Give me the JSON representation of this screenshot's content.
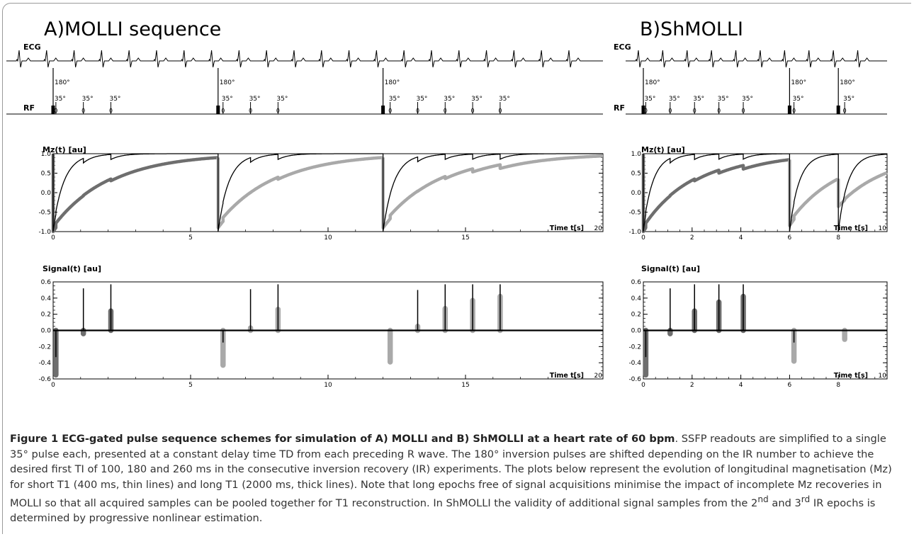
{
  "panels": [
    {
      "id": "A",
      "title": "A)MOLLI sequence",
      "ecg_label": "ECG",
      "rf_label": "RF",
      "mz_label": "Mz(t) [au]",
      "signal_label": "Signal(t) [au]",
      "time_label": "Time t[s]",
      "x_ticks": [
        "0",
        "5",
        "10",
        "15",
        "20"
      ],
      "mz_y_ticks": [
        "1.0",
        "0.5",
        "0.0",
        "-0.5",
        "-1.0"
      ],
      "signal_y_ticks": [
        "0.6",
        "0.4",
        "0.2",
        "0.0",
        "-0.2",
        "-0.4",
        "-0.6"
      ],
      "inversion_label": "180°",
      "readout_label": "35°",
      "inversions_s": [
        0,
        6,
        12
      ],
      "readouts": [
        [
          0.1,
          1.1,
          2.1
        ],
        [
          6.18,
          7.18,
          8.18
        ],
        [
          12.26,
          13.26,
          14.26,
          15.26,
          16.26
        ]
      ]
    },
    {
      "id": "B",
      "title": "B)ShMOLLI",
      "ecg_label": "ECG",
      "rf_label": "RF",
      "mz_label": "Mz(t) [au]",
      "signal_label": "Signal(t) [au]",
      "time_label": "Time t[s]",
      "x_ticks": [
        "0",
        "2",
        "4",
        "6",
        "8",
        "10"
      ],
      "mz_y_ticks": [
        "1.0",
        "0.5",
        "0.0",
        "-0.5",
        "-1.0"
      ],
      "signal_y_ticks": [
        "0.6",
        "0.4",
        "0.2",
        "0.0",
        "-0.2",
        "-0.4",
        "-0.6"
      ],
      "inversion_label": "180°",
      "readout_label": "35°",
      "inversions_s": [
        0,
        6,
        8
      ],
      "readouts": [
        [
          0.1,
          1.1,
          2.1,
          3.1,
          4.1
        ],
        [
          6.18
        ],
        [
          8.26
        ]
      ]
    }
  ],
  "chart_data": [
    {
      "type": "line",
      "panel": "A) MOLLI - Mz(t)",
      "ylabel": "Mz(t) [au]",
      "xlabel": "Time t[s]",
      "xlim": [
        0,
        20
      ],
      "ylim": [
        -1,
        1
      ],
      "series": [
        {
          "T1_ms": 400,
          "style": "thin"
        },
        {
          "T1_ms": 2000,
          "style": "thick"
        }
      ]
    },
    {
      "type": "bar",
      "panel": "A) MOLLI - Signal(t)",
      "ylabel": "Signal(t) [au]",
      "xlabel": "Time t[s]",
      "xlim": [
        0,
        20
      ],
      "ylim": [
        -0.6,
        0.6
      ],
      "x": [
        0.1,
        1.1,
        2.1,
        6.18,
        7.18,
        8.18,
        12.26,
        13.26,
        14.26,
        15.26,
        16.26
      ],
      "series": [
        {
          "style": "thin",
          "values": [
            -0.33,
            0.52,
            0.57,
            -0.15,
            0.51,
            0.57,
            0.0,
            0.5,
            0.57,
            0.57,
            0.57
          ]
        },
        {
          "style": "thick",
          "values": [
            -0.55,
            -0.04,
            0.24,
            -0.43,
            0.03,
            0.26,
            -0.39,
            0.05,
            0.27,
            0.37,
            0.42
          ]
        }
      ]
    },
    {
      "type": "line",
      "panel": "B) ShMOLLI - Mz(t)",
      "ylabel": "Mz(t) [au]",
      "xlabel": "Time t[s]",
      "xlim": [
        0,
        10
      ],
      "ylim": [
        -1,
        1
      ],
      "series": [
        {
          "T1_ms": 400,
          "style": "thin"
        },
        {
          "T1_ms": 2000,
          "style": "thick"
        }
      ]
    },
    {
      "type": "bar",
      "panel": "B) ShMOLLI - Signal(t)",
      "ylabel": "Signal(t) [au]",
      "xlabel": "Time t[s]",
      "xlim": [
        0,
        10
      ],
      "ylim": [
        -0.6,
        0.6
      ],
      "x": [
        0.1,
        1.1,
        2.1,
        3.1,
        4.1,
        6.18,
        8.26
      ],
      "series": [
        {
          "style": "thin",
          "values": [
            -0.33,
            0.52,
            0.57,
            0.57,
            0.57,
            -0.15,
            0.0
          ]
        },
        {
          "style": "thick",
          "values": [
            -0.55,
            -0.04,
            0.24,
            0.35,
            0.42,
            -0.38,
            -0.11
          ]
        }
      ]
    }
  ],
  "colors": {
    "thin_line": "#000000",
    "thick_A_first": "#6e6e6e",
    "thick_other": "#a9a9a9",
    "caption_text": "#333333"
  },
  "caption": {
    "title": "Figure 1 ECG-gated pulse sequence schemes for simulation of A) MOLLI and B) ShMOLLI at a heart rate of 60 bpm",
    "text_1": ". SSFP readouts are simplified to a single 35° pulse each, presented at a constant delay time TD from each preceding R wave. The 180° inversion pulses are shifted depending on the IR number to achieve the desired first TI of 100, 180 and 260 ms in the consecutive inversion recovery (IR) experiments. The plots below represent the evolution of longitudinal magnetisation (Mz) for short T1 (400 ms, thin lines) and long T1 (2000 ms, thick lines). Note that long epochs free of signal acquisitions minimise the impact of incomplete Mz recoveries in MOLLI so that all acquired samples can be pooled together for T1 reconstruction. In ShMOLLI the validity of additional signal samples from the 2",
    "sup_1": "nd",
    "text_2": " and 3",
    "sup_2": "rd",
    "text_3": " IR epochs is determined by progressive nonlinear estimation."
  }
}
